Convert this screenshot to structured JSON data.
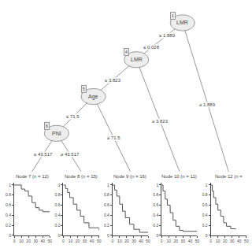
{
  "chart_data": [
    {
      "type": "tree",
      "color": "#999999",
      "root": {
        "label": "LMR",
        "id": "1",
        "children": [
          {
            "edge": [
              "≤ 1.889",
              "≤ 0.028"
            ],
            "node": {
              "label": "LMR",
              "id": "4",
              "children": [
                {
                  "edge": [
                    "≤ 3.823"
                  ],
                  "node": {
                    "label": "Age",
                    "id": "5",
                    "children": [
                      {
                        "edge": [
                          "≤ 71.5"
                        ],
                        "node": {
                          "label": "PNI",
                          "id": "6",
                          "children": [
                            {
                              "edge": [
                                "≤ 43.517"
                              ],
                              "leaf": "Node 7 (n = 12)"
                            },
                            {
                              "edge": [
                                "≥ 43.517"
                              ],
                              "leaf": "Node 8 (n = 15)"
                            }
                          ]
                        }
                      },
                      {
                        "edge": [
                          "≥ 71.5"
                        ],
                        "leaf": "Node 9 (n = 16)"
                      }
                    ]
                  }
                },
                {
                  "edge": [
                    "≥ 3.823"
                  ],
                  "leaf": "Node 10 (n = 11)"
                }
              ]
            }
          },
          {
            "edge": [
              "≥ 1.889"
            ],
            "leaf": "Node 12 (n ="
          }
        ]
      }
    },
    {
      "type": "line",
      "title": "Node 7 (n = 12)",
      "line_style": "step",
      "color": "#555555",
      "grid": false,
      "x": [
        0,
        5,
        10,
        15,
        20,
        25,
        30,
        35,
        40,
        50
      ],
      "values": [
        1.0,
        1.0,
        0.92,
        0.88,
        0.78,
        0.65,
        0.55,
        0.5,
        0.47,
        0.47
      ],
      "xlim": [
        0,
        50
      ],
      "ylim": [
        0,
        1.05
      ],
      "xticks": [
        0,
        10,
        20,
        30,
        40,
        50
      ],
      "yticks": [
        0,
        0.2,
        0.4,
        0.6,
        0.8,
        1
      ]
    },
    {
      "type": "line",
      "title": "Node 8 (n = 15)",
      "line_style": "step",
      "color": "#555555",
      "grid": false,
      "x": [
        0,
        3,
        6,
        9,
        14,
        19,
        24,
        29,
        36,
        50
      ],
      "values": [
        1.0,
        0.93,
        0.85,
        0.75,
        0.62,
        0.5,
        0.38,
        0.25,
        0.15,
        0.1
      ],
      "xlim": [
        0,
        50
      ],
      "ylim": [
        0,
        1.05
      ],
      "xticks": [
        0,
        10,
        20,
        30,
        40,
        50
      ],
      "yticks": [
        0,
        0.2,
        0.4,
        0.6,
        0.8,
        1
      ]
    },
    {
      "type": "line",
      "title": "Node 9 (n = 16)",
      "line_style": "step",
      "color": "#555555",
      "grid": false,
      "x": [
        0,
        3,
        6,
        10,
        14,
        18,
        24,
        30,
        38,
        50
      ],
      "values": [
        1.0,
        0.9,
        0.78,
        0.62,
        0.48,
        0.35,
        0.22,
        0.12,
        0.06,
        0.05
      ],
      "xlim": [
        0,
        50
      ],
      "ylim": [
        0,
        1.05
      ],
      "xticks": [
        0,
        10,
        20,
        30,
        40,
        50
      ],
      "yticks": [
        0,
        0.2,
        0.4,
        0.6,
        0.8,
        1
      ]
    },
    {
      "type": "line",
      "title": "Node 10 (n = 11)",
      "line_style": "step",
      "color": "#555555",
      "grid": false,
      "x": [
        0,
        2,
        5,
        8,
        12,
        16,
        20,
        25,
        30,
        50
      ],
      "values": [
        1.0,
        0.88,
        0.72,
        0.6,
        0.45,
        0.3,
        0.18,
        0.1,
        0.08,
        0.08
      ],
      "xlim": [
        0,
        50
      ],
      "ylim": [
        0,
        1.05
      ],
      "xticks": [
        0,
        10,
        20,
        30,
        40,
        50
      ],
      "yticks": [
        0,
        0.2,
        0.4,
        0.6,
        0.8,
        1
      ]
    },
    {
      "type": "line",
      "title": "Node 12 (n =",
      "line_style": "step",
      "color": "#555555",
      "grid": false,
      "x": [
        0,
        2,
        4,
        7,
        10,
        14,
        18,
        22,
        28,
        35
      ],
      "values": [
        1.0,
        0.88,
        0.75,
        0.62,
        0.5,
        0.38,
        0.25,
        0.18,
        0.13,
        0.12
      ],
      "xlim": [
        0,
        50
      ],
      "ylim": [
        0,
        1.05
      ],
      "xticks": [
        0,
        10,
        20,
        30,
        40,
        50
      ],
      "yticks": [
        0,
        0.2,
        0.4,
        0.6,
        0.8,
        1
      ]
    }
  ]
}
